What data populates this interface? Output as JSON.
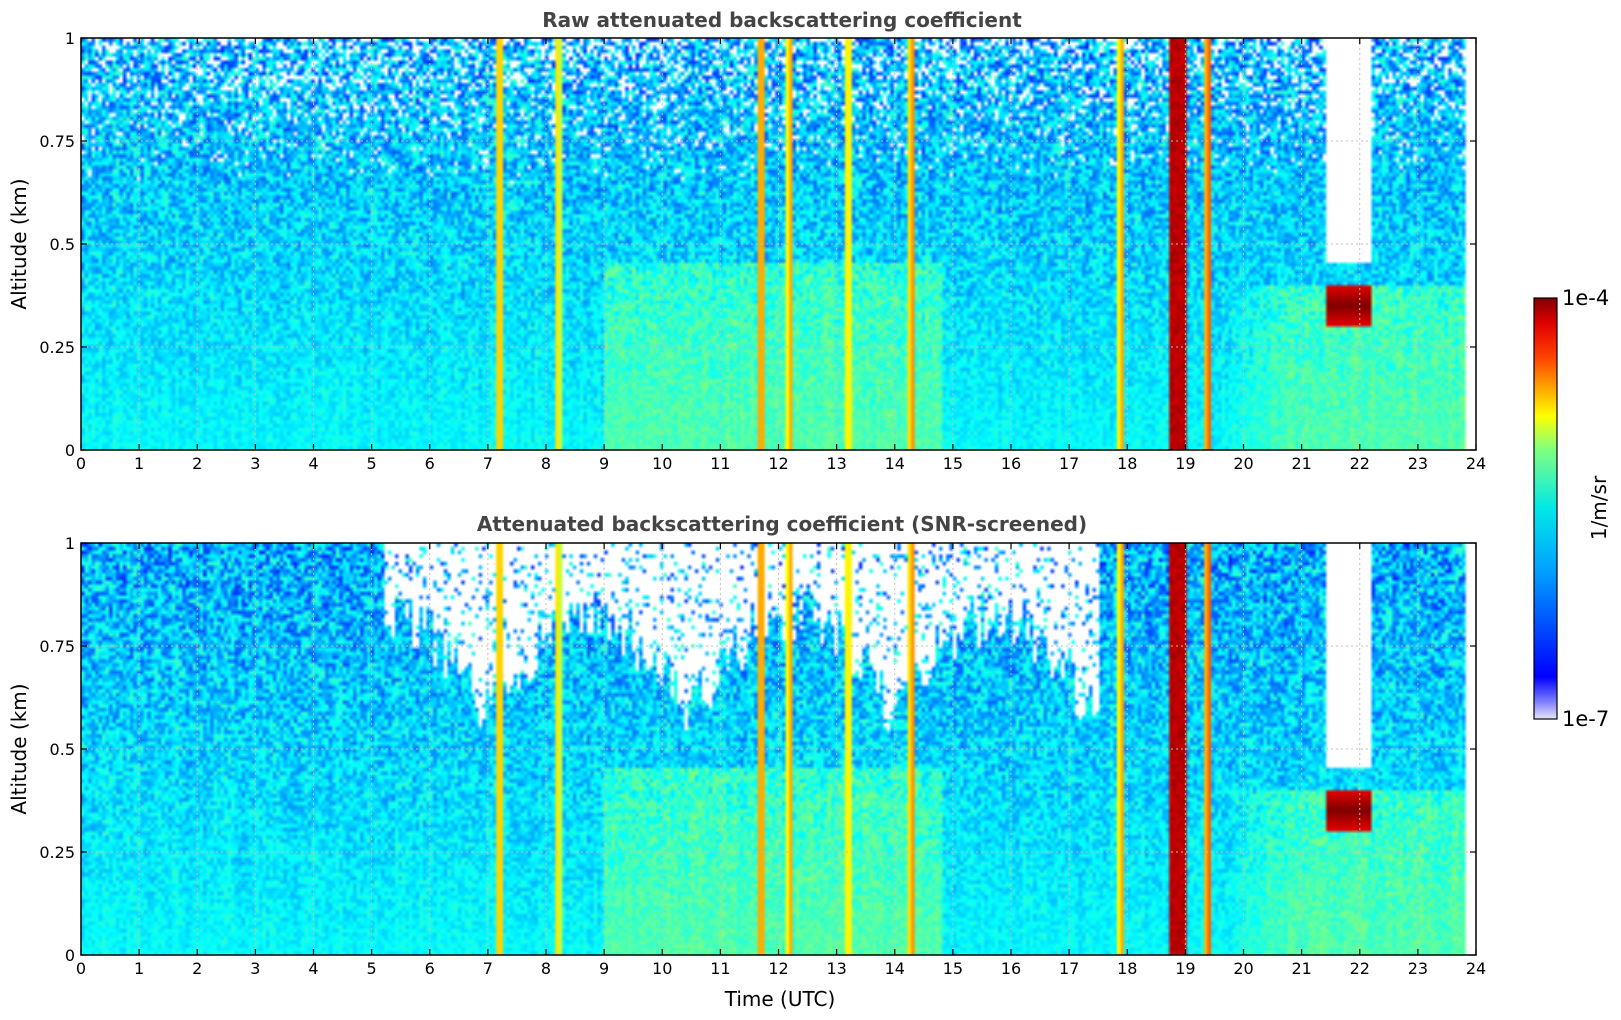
{
  "colorbar": {
    "label": "1/m/sr",
    "min_label": "1e-7",
    "max_label": "1e-4",
    "min": 1e-07,
    "max": 0.0001,
    "scale": "log",
    "colormap": "jet",
    "low_color": "#e6e6f5",
    "high_color": "#800000"
  },
  "chart_data": [
    {
      "type": "heatmap",
      "title": "Raw attenuated backscattering coefficient",
      "xlabel": "",
      "ylabel": "Altitude (km)",
      "xlim": [
        0,
        24
      ],
      "ylim": [
        0,
        1
      ],
      "xticks": [
        "0",
        "1",
        "2",
        "3",
        "4",
        "5",
        "6",
        "7",
        "8",
        "9",
        "10",
        "11",
        "12",
        "13",
        "14",
        "15",
        "16",
        "17",
        "18",
        "19",
        "20",
        "21",
        "22",
        "23",
        "24"
      ],
      "yticks": [
        "0",
        "0.25",
        "0.5",
        "0.75",
        "1"
      ],
      "grid": true,
      "data_end_hour": 23.8,
      "screened": false,
      "features": [
        {
          "kind": "rain_streak",
          "time": 7.2,
          "value": 1.5e-05
        },
        {
          "kind": "rain_streak",
          "time": 8.2,
          "value": 1e-05
        },
        {
          "kind": "rain_streak",
          "time": 11.7,
          "value": 2e-05
        },
        {
          "kind": "rain_streak",
          "time": 12.2,
          "value": 1.5e-05
        },
        {
          "kind": "rain_streak",
          "time": 13.2,
          "value": 1.2e-05
        },
        {
          "kind": "rain_streak",
          "time": 14.3,
          "value": 1.8e-05
        },
        {
          "kind": "rain_streak",
          "time": 17.9,
          "value": 1.5e-05
        },
        {
          "kind": "rain_band",
          "time_start": 18.75,
          "time_end": 19.0,
          "value": 8e-05
        },
        {
          "kind": "rain_streak",
          "time": 19.4,
          "value": 2.5e-05
        },
        {
          "kind": "cloud_layer",
          "time_start": 21.4,
          "time_end": 22.2,
          "altitude": 0.35,
          "value": 0.0001
        }
      ]
    },
    {
      "type": "heatmap",
      "title": "Attenuated backscattering coefficient (SNR-screened)",
      "xlabel": "Time (UTC)",
      "ylabel": "Altitude (km)",
      "xlim": [
        0,
        24
      ],
      "ylim": [
        0,
        1
      ],
      "xticks": [
        "0",
        "1",
        "2",
        "3",
        "4",
        "5",
        "6",
        "7",
        "8",
        "9",
        "10",
        "11",
        "12",
        "13",
        "14",
        "15",
        "16",
        "17",
        "18",
        "19",
        "20",
        "21",
        "22",
        "23",
        "24"
      ],
      "yticks": [
        "0",
        "0.25",
        "0.5",
        "0.75",
        "1"
      ],
      "grid": true,
      "data_end_hour": 23.8,
      "screened": true,
      "features": [
        {
          "kind": "rain_streak",
          "time": 7.2,
          "value": 1.5e-05
        },
        {
          "kind": "rain_streak",
          "time": 8.2,
          "value": 1e-05
        },
        {
          "kind": "rain_streak",
          "time": 11.7,
          "value": 2e-05
        },
        {
          "kind": "rain_streak",
          "time": 12.2,
          "value": 1.5e-05
        },
        {
          "kind": "rain_streak",
          "time": 13.2,
          "value": 1.2e-05
        },
        {
          "kind": "rain_streak",
          "time": 14.3,
          "value": 1.8e-05
        },
        {
          "kind": "rain_streak",
          "time": 17.9,
          "value": 1.5e-05
        },
        {
          "kind": "rain_band",
          "time_start": 18.75,
          "time_end": 19.0,
          "value": 8e-05
        },
        {
          "kind": "rain_streak",
          "time": 19.4,
          "value": 2.5e-05
        },
        {
          "kind": "cloud_layer",
          "time_start": 21.4,
          "time_end": 22.2,
          "altitude": 0.35,
          "value": 0.0001
        }
      ]
    }
  ]
}
